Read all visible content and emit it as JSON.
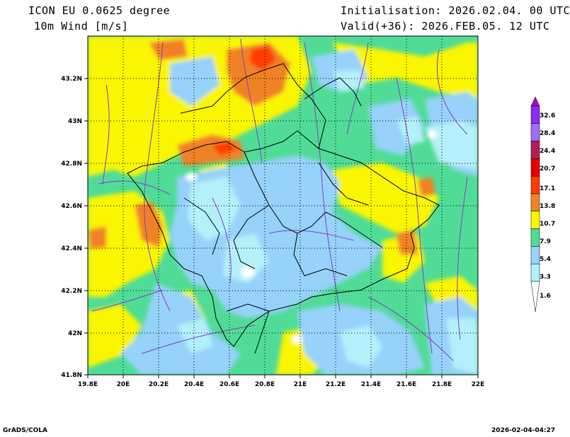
{
  "header": {
    "model": "ICON EU 0.0625 degree",
    "variable": "10m Wind [m/s]",
    "init": "Initialisation: 2026.02.04. 00 UTC",
    "valid": "Valid(+36): 2026.FEB.05. 12 UTC"
  },
  "map": {
    "lon_ticks": [
      "19.8E",
      "20E",
      "20.2E",
      "20.4E",
      "20.6E",
      "20.8E",
      "21E",
      "21.2E",
      "21.4E",
      "21.6E",
      "21.8E",
      "22E"
    ],
    "lat_ticks": [
      "43.2N",
      "43N",
      "42.8N",
      "42.6N",
      "42.4N",
      "42.2N",
      "42N",
      "41.8N"
    ],
    "extent": {
      "lon": [
        19.8,
        22.0
      ],
      "lat": [
        41.8,
        43.4
      ]
    },
    "grid": "dotted"
  },
  "colorbar": {
    "levels": [
      "32.6",
      "28.4",
      "24.4",
      "20.7",
      "17.1",
      "13.8",
      "10.7",
      "7.9",
      "5.4",
      "3.3",
      "1.6"
    ],
    "colors": {
      "lt1_6": "#ffffff",
      "b1_6_3_3": "#b4f0fa",
      "b3_3_5_4": "#96d2fa",
      "b5_4_7_9": "#50dc96",
      "b7_9_10_7": "#faf500",
      "b10_7_13_8": "#f08228",
      "b13_8_17_1": "#ff3c00",
      "b17_1_20_7": "#e60000",
      "b20_7_24_4": "#b41e5a",
      "b24_4_28_4": "#a06ef0",
      "b28_4_32_6": "#8c2df0",
      "gt32_6": "#b400c8"
    }
  },
  "footer": {
    "left": "GrADS/COLA",
    "right": "2026-02-04-04:27"
  }
}
